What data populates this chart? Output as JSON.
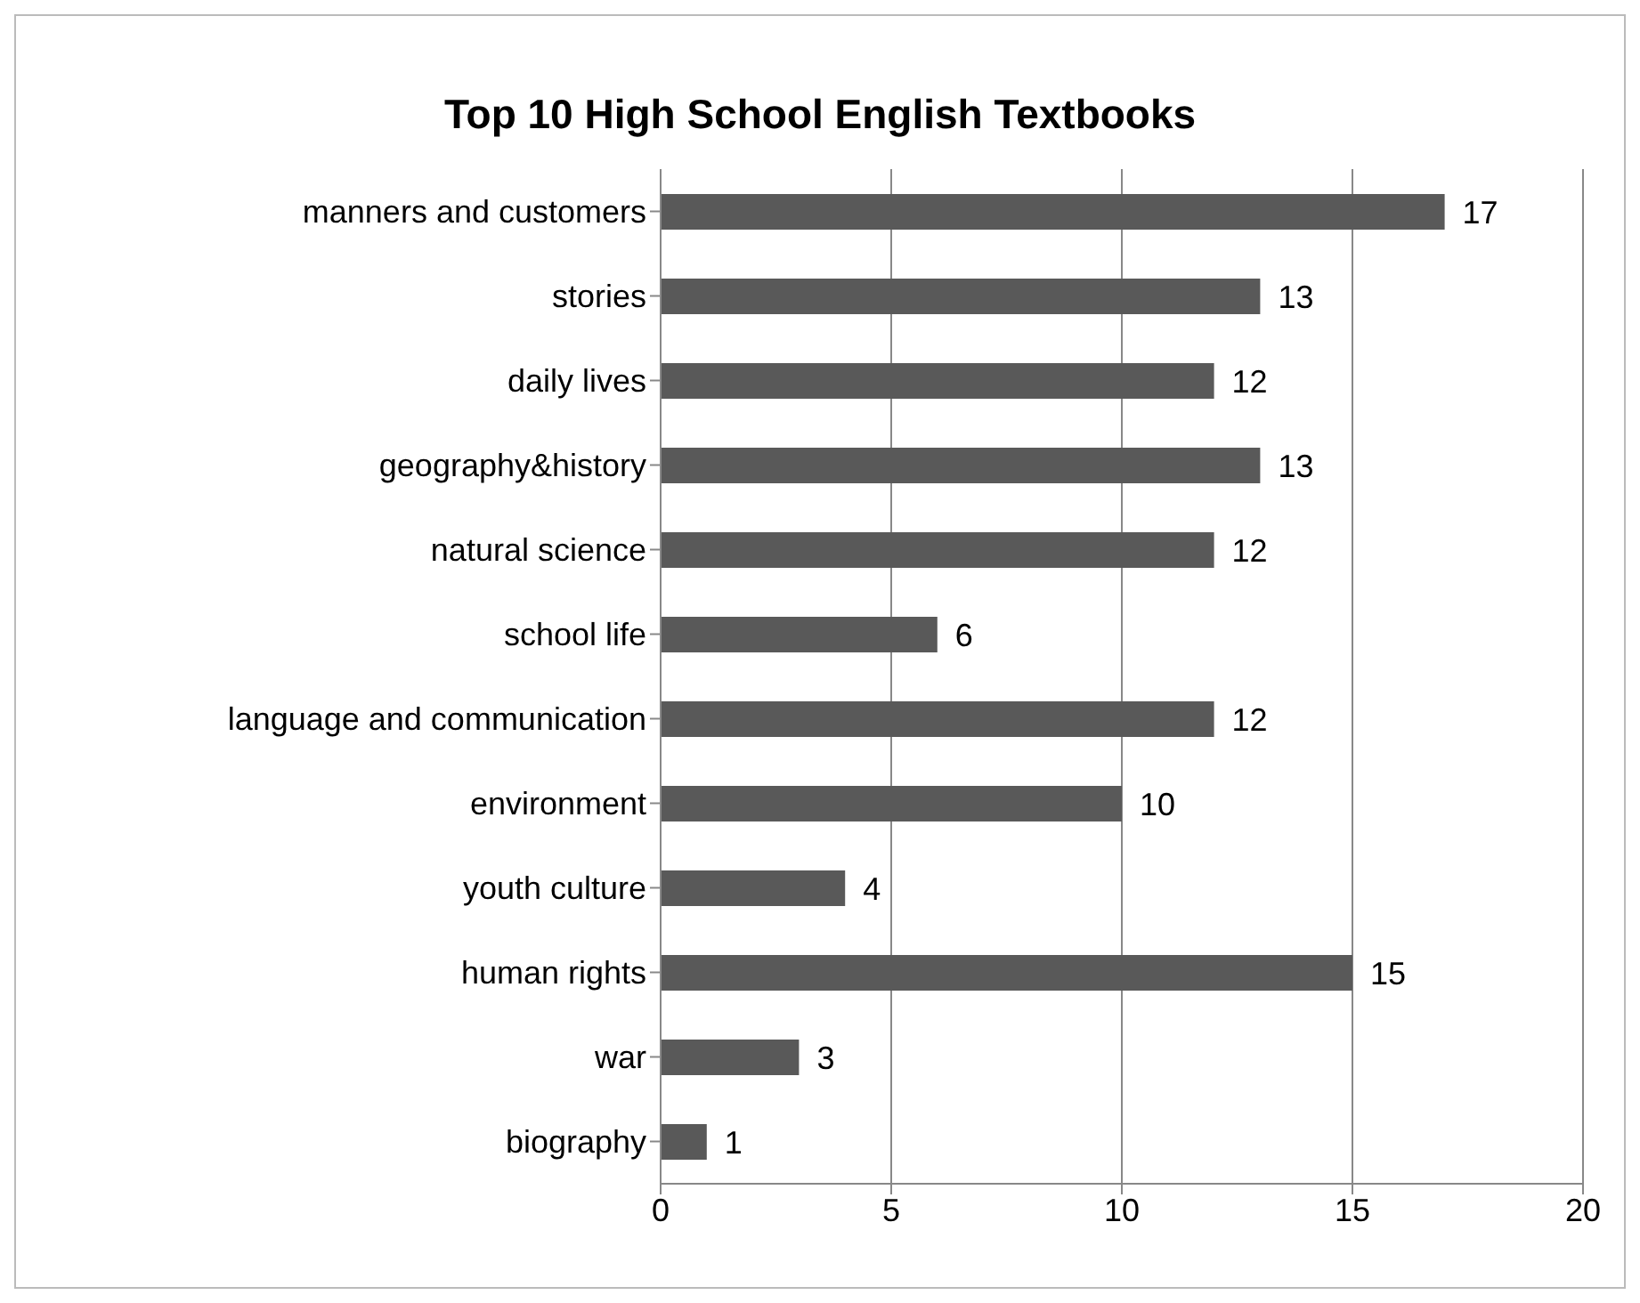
{
  "chart_data": {
    "type": "bar",
    "orientation": "horizontal",
    "title": "Top 10 High School English Textbooks",
    "categories": [
      "manners and customers",
      "stories",
      "daily lives",
      "geography&history",
      "natural science",
      "school life",
      "language and communication",
      "environment",
      "youth culture",
      "human rights",
      "war",
      "biography"
    ],
    "values": [
      17,
      13,
      12,
      13,
      12,
      6,
      12,
      10,
      4,
      15,
      3,
      1
    ],
    "color": "#595959",
    "xlim": [
      0,
      20
    ],
    "xticks": [
      0,
      5,
      10,
      15,
      20
    ],
    "grid": "x",
    "data_labels": true,
    "legend": false
  }
}
